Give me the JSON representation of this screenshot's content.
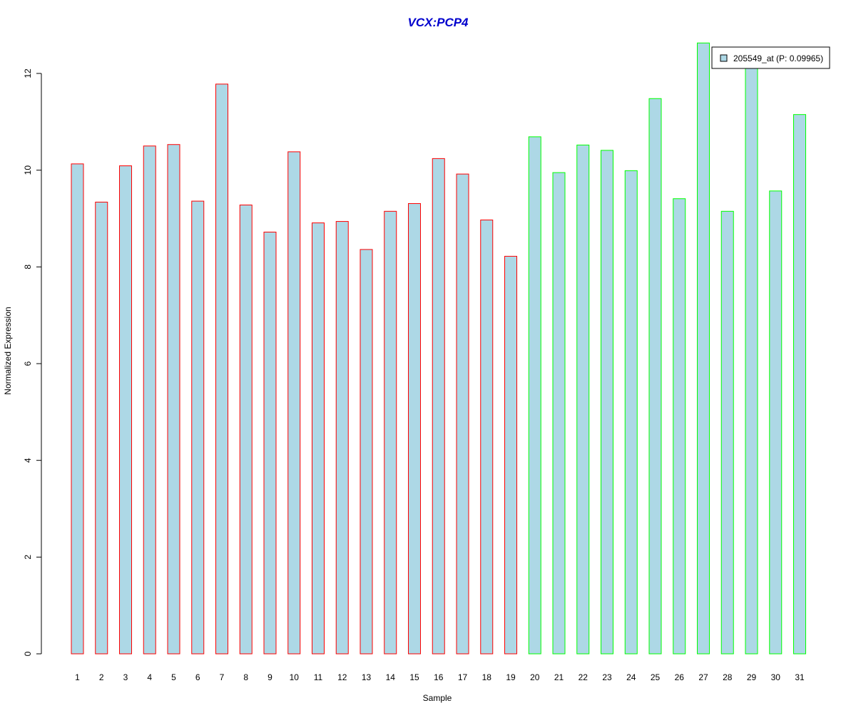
{
  "colors": {
    "bar_fill": "#add8e6",
    "group1_border": "#ff0000",
    "group2_border": "#00ff00",
    "title": "#0000cd",
    "axis": "#000000"
  },
  "chart_data": {
    "type": "bar",
    "title": "VCX:PCP4",
    "xlabel": "Sample",
    "ylabel": "Normalized Expression",
    "ylim": [
      0,
      12
    ],
    "yticks": [
      0,
      2,
      4,
      6,
      8,
      10,
      12
    ],
    "categories": [
      "1",
      "2",
      "3",
      "4",
      "5",
      "6",
      "7",
      "8",
      "9",
      "10",
      "11",
      "12",
      "13",
      "14",
      "15",
      "16",
      "17",
      "18",
      "19",
      "20",
      "21",
      "22",
      "23",
      "24",
      "25",
      "26",
      "27",
      "28",
      "29",
      "30",
      "31"
    ],
    "series": [
      {
        "name": "205549_at (P: 0.09965)",
        "values": [
          10.13,
          9.34,
          10.09,
          10.5,
          10.53,
          9.36,
          11.78,
          9.28,
          8.72,
          10.38,
          8.91,
          8.94,
          8.36,
          9.15,
          9.31,
          10.24,
          9.92,
          8.97,
          8.22,
          10.69,
          9.95,
          10.52,
          10.41,
          9.99,
          11.48,
          9.41,
          12.63,
          9.15,
          12.25,
          9.57,
          11.15
        ],
        "border_groups": [
          1,
          1,
          1,
          1,
          1,
          1,
          1,
          1,
          1,
          1,
          1,
          1,
          1,
          1,
          1,
          1,
          1,
          1,
          1,
          2,
          2,
          2,
          2,
          2,
          2,
          2,
          2,
          2,
          2,
          2,
          2
        ]
      }
    ],
    "legend": {
      "position": "top-right",
      "label": "205549_at (P: 0.09965)"
    },
    "grid": false
  }
}
